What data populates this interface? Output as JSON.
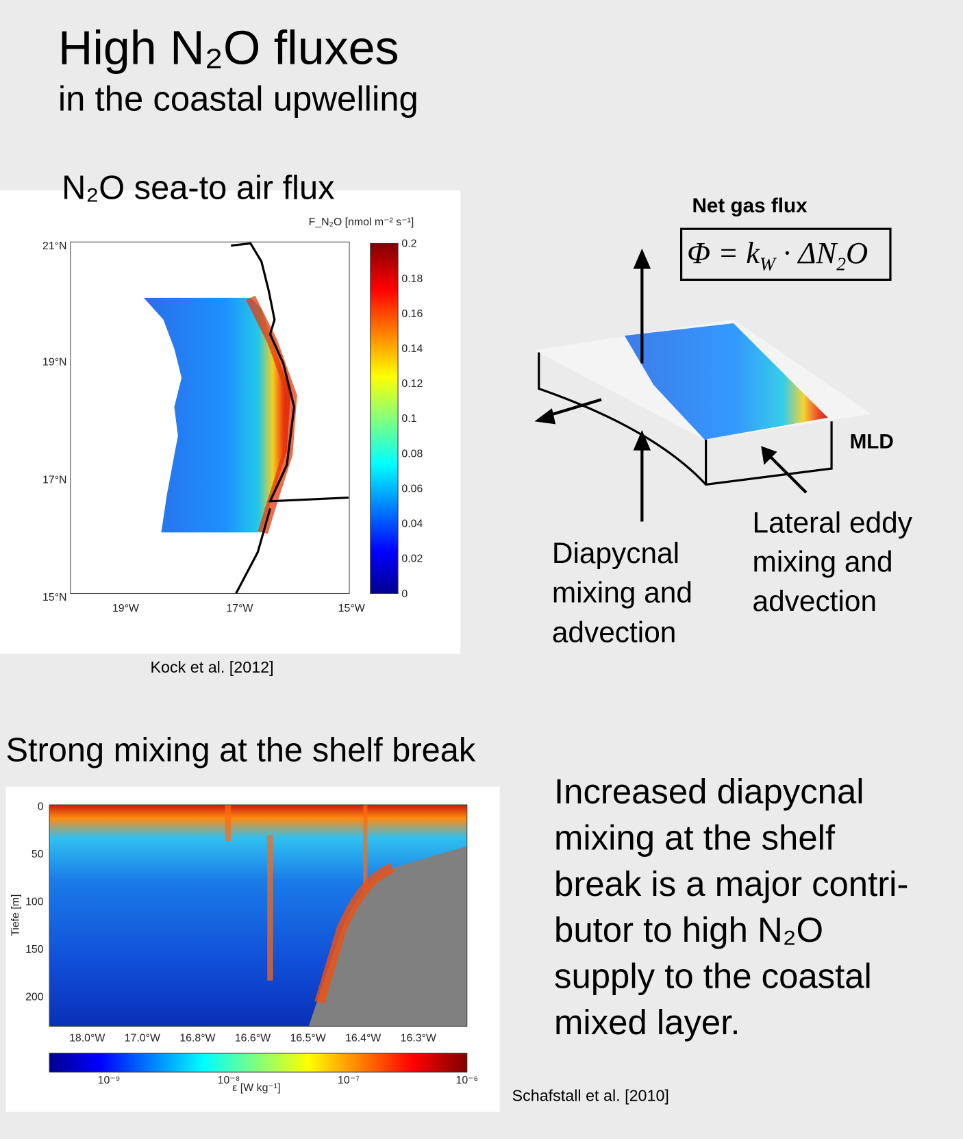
{
  "header": {
    "title": "High N₂O fluxes",
    "subtitle": "in the coastal upwelling"
  },
  "flux_panel": {
    "title": "N₂O sea-to air flux",
    "figure": {
      "colorbar_label": "F_N₂O [nmol m⁻² s⁻¹]",
      "colorbar_ticks": [
        "0.2",
        "0.18",
        "0.16",
        "0.14",
        "0.12",
        "0.1",
        "0.08",
        "0.06",
        "0.04",
        "0.02",
        "0"
      ],
      "y_ticks": [
        "21°N",
        "19°N",
        "17°N",
        "15°N"
      ],
      "x_ticks": [
        "19°W",
        "17°W",
        "15°W"
      ]
    },
    "citation": "Kock et al. [2012]"
  },
  "diagram": {
    "title": "Net gas flux",
    "formula": [
      "Φ = k",
      "W",
      " · ΔN",
      "2",
      "O"
    ],
    "mld": "MLD",
    "left_label": [
      "Diapycnal",
      "mixing and",
      "advection"
    ],
    "right_label": [
      "Lateral eddy",
      "mixing and",
      "advection"
    ]
  },
  "mixing_panel": {
    "title": "Strong mixing at the shelf break",
    "figure": {
      "y_label": "Tiefe [m]",
      "y_ticks": [
        "0",
        "50",
        "100",
        "150",
        "200"
      ],
      "x_ticks": [
        "18.0°W",
        "17.0°W",
        "16.8°W",
        "16.6°W",
        "16.5°W",
        "16.4°W",
        "16.3°W"
      ],
      "colorbar_label": "ε [W kg⁻¹]",
      "colorbar_ticks": [
        "10⁻⁹",
        "10⁻⁸",
        "10⁻⁷",
        "10⁻⁶"
      ]
    },
    "citation": "Schafstall et al. [2010]"
  },
  "body_text": [
    "Increased diapycnal",
    "mixing at the shelf",
    "break is a major contri-",
    "butor to high N₂O",
    "supply to the coastal",
    "mixed layer."
  ]
}
